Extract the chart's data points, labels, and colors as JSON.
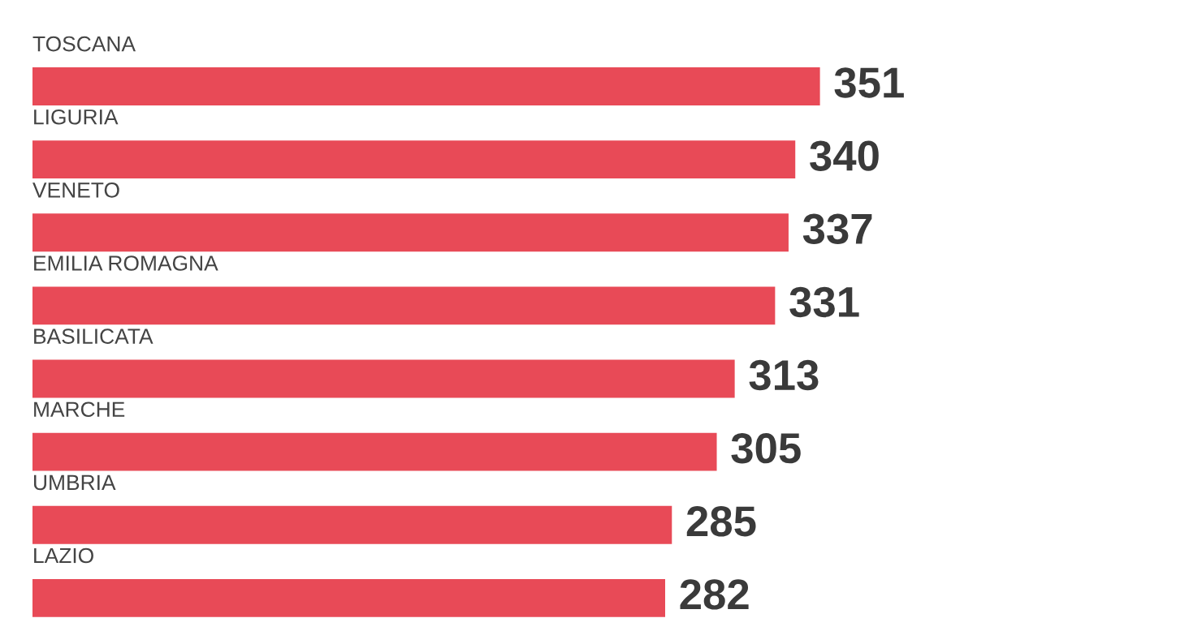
{
  "chart_data": {
    "type": "bar",
    "orientation": "horizontal",
    "categories": [
      "TOSCANA",
      "LIGURIA",
      "VENETO",
      "EMILIA ROMAGNA",
      "BASILICATA",
      "MARCHE",
      "UMBRIA",
      "LAZIO"
    ],
    "values": [
      351,
      340,
      337,
      331,
      313,
      305,
      285,
      282
    ],
    "color": "#e84a57",
    "data_labels": true
  }
}
